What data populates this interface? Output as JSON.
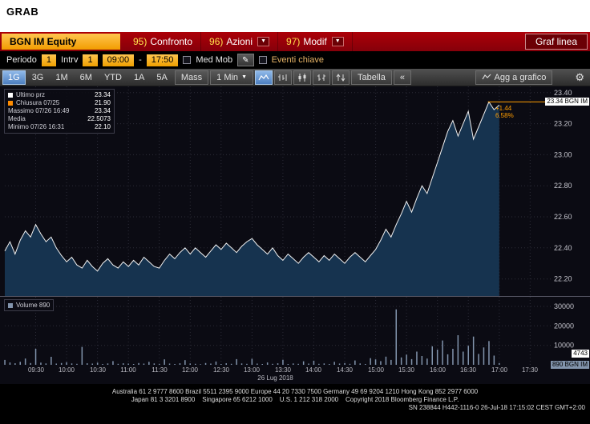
{
  "header": {
    "title": "GRAB"
  },
  "icons": {
    "dropdown_arrow": "▼",
    "pencil": "✎",
    "gear": "⚙"
  },
  "red_toolbar": {
    "security": "BGN IM Equity",
    "menu_items": [
      {
        "num": "95)",
        "label": "Confronto",
        "dropdown": false
      },
      {
        "num": "96)",
        "label": "Azioni",
        "dropdown": true
      },
      {
        "num": "97)",
        "label": "Modif",
        "dropdown": true
      }
    ],
    "view_label": "Graf linea"
  },
  "settings_row": {
    "periodo_label": "Periodo",
    "periodo_value": "1",
    "intrv_label": "Intrv",
    "intrv_value": "1",
    "time_from": "09:00",
    "range_sep": "-",
    "time_to": "17:50",
    "med_mob_label": "Med Mob",
    "eventi_label": "Eventi chiave"
  },
  "toolbar": {
    "tabs": [
      "1G",
      "3G",
      "1M",
      "6M",
      "YTD",
      "1A",
      "5A"
    ],
    "active_tab": "1G",
    "mass_label": "Mass",
    "interval_value": "1 Min",
    "tabella_label": "Tabella",
    "collapse_label": "«",
    "agg_label": "Agg a grafico"
  },
  "price_panel": {
    "legend": [
      {
        "label": "Ultimo prz",
        "value": "23.34",
        "swatch": "#ffffff"
      },
      {
        "label": "Chiusura 07/25",
        "value": "21.90",
        "swatch": "#ff8c00"
      },
      {
        "label": "Massimo 07/26 16:49",
        "value": "23.34"
      },
      {
        "label": "Media",
        "value": "22.5073"
      },
      {
        "label": "Minimo 07/26 16:31",
        "value": "22.10"
      }
    ],
    "axis_ticks": [
      "23.40",
      "23.20",
      "23.00",
      "22.80",
      "22.60",
      "22.40",
      "22.20"
    ],
    "last_badge": "23.34 BGN IM",
    "change": "+1.44",
    "change_pct": "6.58%"
  },
  "volume_panel": {
    "legend_label": "Volume 890",
    "axis_ticks": [
      "30000",
      "20000",
      "10000"
    ],
    "avg_badge": "4743",
    "last_badge": "890 BGN IM"
  },
  "time_axis": {
    "labels": [
      "09:30",
      "10:00",
      "10:30",
      "11:00",
      "11:30",
      "12:00",
      "12:30",
      "13:00",
      "13:30",
      "14:00",
      "14:30",
      "15:00",
      "15:30",
      "16:00",
      "16:30",
      "17:00",
      "17:30"
    ],
    "date": "26 Lug 2018"
  },
  "footer": {
    "line1": "Australia 61 2 9777 8600 Brazil 5511 2395 9000 Europe 44 20 7330 7500 Germany 49 69 9204 1210 Hong Kong 852 2977 6000",
    "line2": "Japan 81 3 3201 8900    Singapore 65 6212 1000    U.S. 1 212 318 2000    Copyright 2018 Bloomberg Finance L.P.",
    "line3": "SN 238844 H442-1116-0 26-Jul-18 17:15:02 CEST GMT+2:00"
  },
  "chart_data": {
    "type": "line",
    "title": "GRAB BGN IM Equity intraday 1-minute line chart with volume",
    "time_start": "09:00",
    "time_end_data": "17:00",
    "session_end": "17:50",
    "interval_min": 5,
    "price_ylim": [
      22.09,
      23.44
    ],
    "volume_ylim": [
      0,
      32000
    ],
    "last_price": 23.34,
    "prev_close": 21.9,
    "high": {
      "time": "16:49",
      "value": 23.34
    },
    "low": {
      "time": "16:31",
      "value": 22.1
    },
    "mean": 22.5073,
    "change": 1.44,
    "change_pct": 6.58,
    "prices": [
      22.38,
      22.44,
      22.36,
      22.45,
      22.51,
      22.47,
      22.55,
      22.49,
      22.44,
      22.47,
      22.4,
      22.35,
      22.31,
      22.34,
      22.29,
      22.27,
      22.32,
      22.28,
      22.25,
      22.3,
      22.33,
      22.29,
      22.27,
      22.31,
      22.28,
      22.32,
      22.29,
      22.34,
      22.31,
      22.28,
      22.27,
      22.32,
      22.36,
      22.33,
      22.37,
      22.4,
      22.36,
      22.4,
      22.37,
      22.34,
      22.38,
      22.42,
      22.39,
      22.43,
      22.4,
      22.37,
      22.41,
      22.44,
      22.46,
      22.42,
      22.39,
      22.36,
      22.4,
      22.35,
      22.32,
      22.36,
      22.33,
      22.3,
      22.34,
      22.37,
      22.34,
      22.31,
      22.35,
      22.32,
      22.36,
      22.33,
      22.3,
      22.34,
      22.37,
      22.34,
      22.31,
      22.35,
      22.39,
      22.45,
      22.52,
      22.47,
      22.55,
      22.62,
      22.7,
      22.63,
      22.72,
      22.8,
      22.75,
      22.85,
      22.95,
      23.05,
      23.15,
      23.22,
      23.12,
      23.2,
      23.28,
      23.1,
      23.18,
      23.26,
      23.34,
      23.29,
      23.32
    ],
    "volumes": [
      2500,
      1200,
      800,
      1500,
      3200,
      900,
      8200,
      1100,
      700,
      4100,
      600,
      900,
      1300,
      700,
      500,
      9200,
      800,
      600,
      1100,
      400,
      700,
      1900,
      500,
      800,
      600,
      400,
      900,
      600,
      1500,
      700,
      500,
      2800,
      600,
      400,
      800,
      2400,
      700,
      500,
      300,
      900,
      600,
      1700,
      400,
      800,
      500,
      2900,
      700,
      500,
      3100,
      600,
      400,
      1200,
      500,
      800,
      2600,
      400,
      700,
      500,
      1800,
      600,
      2100,
      500,
      700,
      400,
      1500,
      600,
      900,
      500,
      2200,
      700,
      400,
      3400,
      2800,
      1900,
      4200,
      2500,
      28500,
      3800,
      5200,
      2900,
      6800,
      4500,
      3200,
      9500,
      7800,
      12500,
      5400,
      8200,
      15200,
      6800,
      9800,
      14500,
      5600,
      8900,
      12200,
      4743,
      890
    ],
    "colors": {
      "line": "#f0f0f0",
      "fill": "#16334f",
      "last_line": "#ff9d00",
      "volume_bar": "#8294ac"
    }
  }
}
